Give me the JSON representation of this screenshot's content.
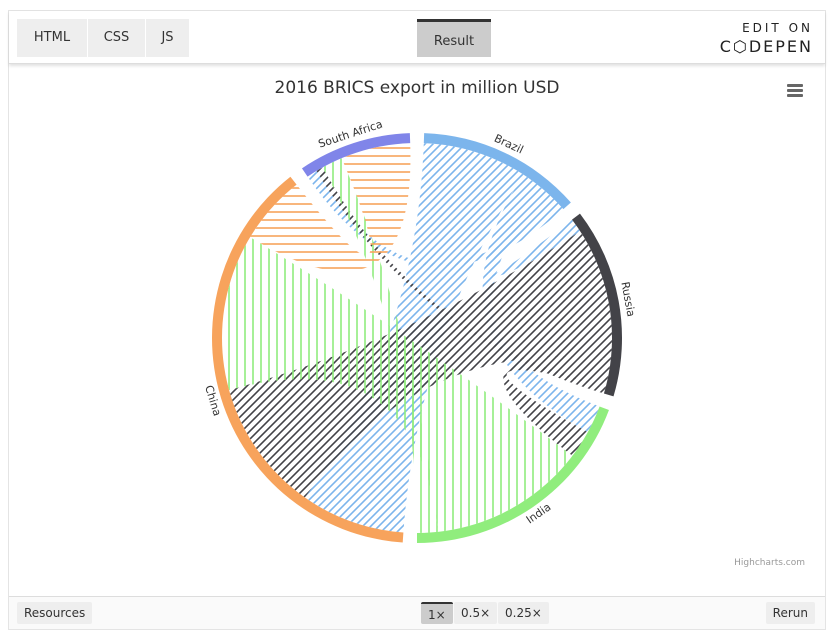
{
  "editor": {
    "tabs": [
      "HTML",
      "CSS",
      "JS"
    ],
    "result_label": "Result",
    "edit_on": "EDIT ON",
    "codepen": "C⬡DEPEN"
  },
  "footer": {
    "resources": "Resources",
    "zoom": [
      "1×",
      "0.5×",
      "0.25×"
    ],
    "rerun": "Rerun"
  },
  "chart": {
    "credit": "Highcharts.com"
  },
  "chart_data": {
    "type": "dependencywheel",
    "title": "2016 BRICS export in million USD",
    "nodes": [
      {
        "name": "Brazil",
        "color": "#7cb5ec",
        "pattern": "diagonal"
      },
      {
        "name": "Russia",
        "color": "#434348",
        "pattern": "diagonal"
      },
      {
        "name": "India",
        "color": "#90ed7d",
        "pattern": "vertical"
      },
      {
        "name": "China",
        "color": "#f7a35c",
        "pattern": "horizontal"
      },
      {
        "name": "South Africa",
        "color": "#8085e9",
        "pattern": "dashed"
      }
    ],
    "links": [
      {
        "from": "Brazil",
        "to": "China",
        "weight": 30
      },
      {
        "from": "Brazil",
        "to": "India",
        "weight": 8
      },
      {
        "from": "Brazil",
        "to": "Russia",
        "weight": 4
      },
      {
        "from": "Brazil",
        "to": "South Africa",
        "weight": 3
      },
      {
        "from": "Russia",
        "to": "China",
        "weight": 38
      },
      {
        "from": "Russia",
        "to": "India",
        "weight": 8
      },
      {
        "from": "Russia",
        "to": "South Africa",
        "weight": 2
      },
      {
        "from": "India",
        "to": "China",
        "weight": 45
      },
      {
        "from": "India",
        "to": "South Africa",
        "weight": 6
      },
      {
        "from": "China",
        "to": "South Africa",
        "weight": 20
      }
    ]
  }
}
